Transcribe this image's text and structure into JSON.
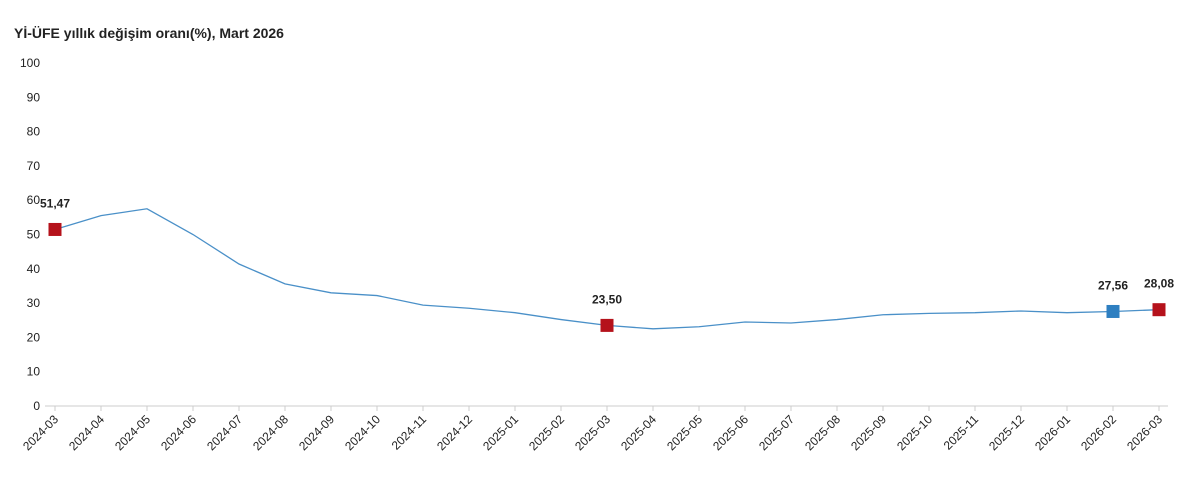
{
  "chart_data": {
    "type": "line",
    "title": "Yİ-ÜFE yıllık değişim oranı(%), Mart 2026",
    "categories": [
      "2024-03",
      "2024-04",
      "2024-05",
      "2024-06",
      "2024-07",
      "2024-08",
      "2024-09",
      "2024-10",
      "2024-11",
      "2024-12",
      "2025-01",
      "2025-02",
      "2025-03",
      "2025-04",
      "2025-05",
      "2025-06",
      "2025-07",
      "2025-08",
      "2025-09",
      "2025-10",
      "2025-11",
      "2025-12",
      "2026-01",
      "2026-02",
      "2026-03"
    ],
    "values": [
      51.47,
      55.5,
      57.5,
      50.0,
      41.4,
      35.6,
      33.0,
      32.2,
      29.4,
      28.5,
      27.2,
      25.2,
      23.5,
      22.5,
      23.1,
      24.5,
      24.2,
      25.2,
      26.6,
      27.0,
      27.2,
      27.7,
      27.2,
      27.56,
      28.08
    ],
    "value_labels": [
      "51,47",
      null,
      null,
      null,
      null,
      null,
      null,
      null,
      null,
      null,
      null,
      null,
      "23,50",
      null,
      null,
      null,
      null,
      null,
      null,
      null,
      null,
      null,
      null,
      "27,56",
      "28,08"
    ],
    "marker_colors": [
      "#b5121b",
      null,
      null,
      null,
      null,
      null,
      null,
      null,
      null,
      null,
      null,
      null,
      "#b5121b",
      null,
      null,
      null,
      null,
      null,
      null,
      null,
      null,
      null,
      null,
      "#2e7fc1",
      "#b5121b"
    ],
    "color": "#4a90c8",
    "ylim": [
      0,
      100
    ],
    "yticks": [
      0,
      10,
      20,
      30,
      40,
      50,
      60,
      70,
      80,
      90,
      100
    ]
  }
}
